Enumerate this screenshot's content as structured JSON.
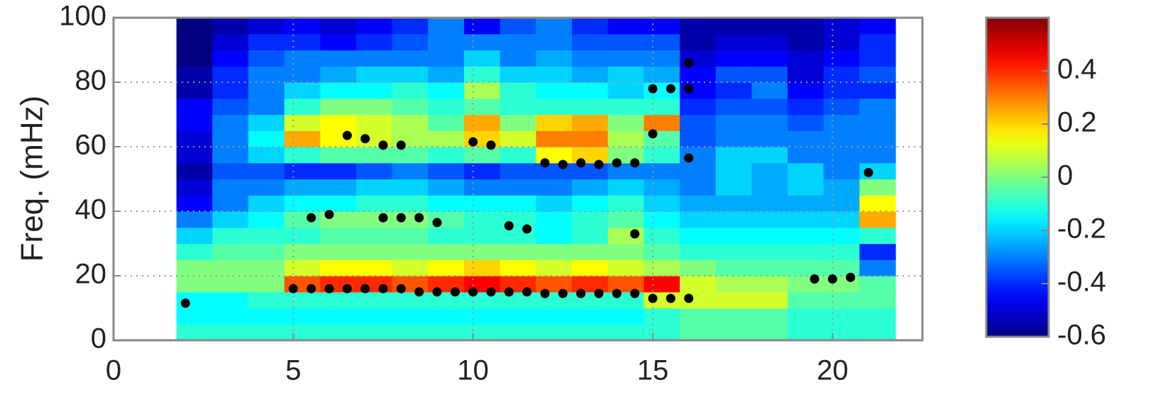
{
  "chart_data": {
    "type": "heatmap",
    "y_label": "Freq. (mHz)",
    "xlim": [
      0,
      22.5
    ],
    "xticks": [
      0,
      5,
      10,
      15,
      20
    ],
    "ylim": [
      0,
      100
    ],
    "yticks": [
      0,
      20,
      40,
      60,
      80,
      100
    ],
    "grid": true,
    "colormap": "jet",
    "clim": [
      -0.6,
      0.6
    ],
    "cticks": [
      -0.6,
      -0.4,
      -0.2,
      0,
      0.2,
      0.4
    ],
    "x": [
      2.25,
      3.25,
      4.25,
      5.25,
      6.25,
      7.25,
      8.25,
      9.25,
      10.25,
      11.25,
      12.25,
      13.25,
      14.25,
      15.25,
      16.25,
      17.25,
      18.25,
      19.25,
      20.25,
      21.25
    ],
    "y": [
      2.5,
      7.5,
      12.5,
      17.5,
      22.5,
      27.5,
      32.5,
      37.5,
      42.5,
      47.5,
      52.5,
      57.5,
      62.5,
      67.5,
      72.5,
      77.5,
      82.5,
      87.5,
      92.5,
      97.5
    ],
    "z": [
      [
        -0.1,
        -0.1,
        -0.1,
        -0.1,
        -0.1,
        -0.1,
        -0.1,
        -0.1,
        -0.1,
        -0.1,
        -0.1,
        -0.1,
        -0.1,
        -0.1,
        -0.05,
        -0.05,
        -0.05,
        -0.1,
        -0.1,
        -0.1
      ],
      [
        -0.15,
        -0.15,
        -0.15,
        -0.15,
        -0.15,
        -0.15,
        -0.15,
        -0.15,
        -0.15,
        -0.15,
        -0.15,
        -0.15,
        -0.15,
        -0.1,
        -0.05,
        -0.05,
        -0.05,
        -0.1,
        -0.1,
        -0.1
      ],
      [
        -0.15,
        -0.15,
        -0.1,
        -0.1,
        -0.1,
        -0.1,
        -0.1,
        -0.1,
        -0.1,
        -0.1,
        -0.1,
        -0.1,
        -0.1,
        0.1,
        0.1,
        0.1,
        0.1,
        -0.05,
        -0.05,
        -0.05
      ],
      [
        0,
        0,
        0,
        0.35,
        0.4,
        0.4,
        0.35,
        0.4,
        0.45,
        0.4,
        0.35,
        0.4,
        0.35,
        0.45,
        0.1,
        0.05,
        0.05,
        0,
        0,
        -0.05
      ],
      [
        0,
        0,
        0,
        0.1,
        0.15,
        0.15,
        0.1,
        0.15,
        0.2,
        0.15,
        0.1,
        0.15,
        0.1,
        0.05,
        0,
        -0.05,
        -0.05,
        -0.05,
        -0.05,
        -0.3
      ],
      [
        -0.1,
        -0.05,
        -0.05,
        0,
        0,
        0,
        0,
        0,
        0,
        0,
        0,
        0,
        0,
        -0.05,
        -0.1,
        -0.1,
        -0.1,
        -0.1,
        -0.1,
        -0.4
      ],
      [
        -0.2,
        -0.1,
        -0.1,
        -0.1,
        -0.05,
        -0.05,
        -0.05,
        -0.1,
        -0.1,
        -0.1,
        -0.15,
        -0.1,
        0.05,
        -0.1,
        -0.15,
        -0.15,
        -0.15,
        -0.15,
        -0.15,
        -0.1
      ],
      [
        -0.3,
        -0.2,
        -0.15,
        -0.05,
        0,
        0,
        0,
        -0.05,
        -0.1,
        -0.1,
        -0.15,
        -0.1,
        -0.05,
        -0.15,
        -0.2,
        -0.2,
        -0.2,
        -0.2,
        -0.2,
        0.25
      ],
      [
        -0.45,
        -0.3,
        -0.2,
        -0.15,
        -0.15,
        -0.1,
        -0.1,
        -0.15,
        -0.15,
        -0.15,
        -0.2,
        -0.15,
        -0.1,
        -0.2,
        -0.25,
        -0.25,
        -0.25,
        -0.25,
        -0.25,
        0.15
      ],
      [
        -0.5,
        -0.3,
        -0.3,
        -0.25,
        -0.25,
        -0.2,
        -0.2,
        -0.25,
        -0.3,
        -0.3,
        -0.3,
        -0.25,
        -0.2,
        -0.25,
        -0.3,
        -0.2,
        -0.25,
        -0.2,
        -0.25,
        0
      ],
      [
        -0.55,
        -0.35,
        -0.35,
        -0.4,
        -0.4,
        -0.35,
        -0.3,
        -0.35,
        -0.4,
        -0.35,
        -0.35,
        -0.35,
        -0.3,
        -0.3,
        -0.3,
        -0.2,
        -0.25,
        -0.2,
        -0.3,
        -0.2
      ],
      [
        -0.5,
        -0.3,
        -0.2,
        -0.1,
        -0.05,
        -0.05,
        -0.05,
        -0.1,
        -0.05,
        -0.1,
        0.15,
        0.2,
        0,
        -0.1,
        -0.3,
        -0.2,
        -0.2,
        -0.3,
        -0.3,
        -0.3
      ],
      [
        -0.5,
        -0.3,
        -0.15,
        0.25,
        0.15,
        0.1,
        0.05,
        0.05,
        0.2,
        0.1,
        0.3,
        0.3,
        0.05,
        -0.05,
        -0.35,
        -0.3,
        -0.3,
        -0.3,
        -0.3,
        -0.3
      ],
      [
        -0.45,
        -0.3,
        -0.2,
        0.1,
        0.15,
        0.1,
        0.05,
        -0.05,
        0.25,
        0,
        0.2,
        0.25,
        0,
        0.3,
        -0.35,
        -0.3,
        -0.3,
        -0.35,
        -0.3,
        -0.3
      ],
      [
        -0.45,
        -0.35,
        -0.3,
        -0.1,
        0,
        0,
        -0.05,
        -0.1,
        -0.05,
        -0.1,
        -0.1,
        -0.1,
        -0.1,
        -0.1,
        -0.4,
        -0.35,
        -0.35,
        -0.4,
        -0.35,
        -0.3
      ],
      [
        -0.55,
        -0.4,
        -0.3,
        -0.2,
        -0.15,
        -0.15,
        -0.1,
        -0.15,
        0.05,
        -0.1,
        -0.15,
        -0.15,
        -0.2,
        -0.15,
        -0.45,
        -0.4,
        -0.3,
        -0.45,
        -0.4,
        -0.4
      ],
      [
        -0.55,
        -0.4,
        -0.3,
        -0.3,
        -0.25,
        -0.2,
        -0.2,
        -0.25,
        -0.1,
        -0.2,
        -0.2,
        -0.25,
        -0.2,
        -0.25,
        -0.45,
        -0.35,
        -0.35,
        -0.5,
        -0.4,
        -0.35
      ],
      [
        -0.6,
        -0.45,
        -0.35,
        -0.3,
        -0.3,
        -0.3,
        -0.3,
        -0.3,
        -0.2,
        -0.3,
        -0.25,
        -0.3,
        -0.3,
        -0.3,
        -0.5,
        -0.45,
        -0.45,
        -0.5,
        -0.45,
        -0.4
      ],
      [
        -0.6,
        -0.5,
        -0.4,
        -0.4,
        -0.45,
        -0.4,
        -0.35,
        -0.3,
        -0.3,
        -0.3,
        -0.3,
        -0.35,
        -0.35,
        -0.35,
        -0.55,
        -0.5,
        -0.5,
        -0.55,
        -0.5,
        -0.4
      ],
      [
        -0.6,
        -0.55,
        -0.5,
        -0.45,
        -0.5,
        -0.45,
        -0.4,
        -0.3,
        -0.45,
        -0.35,
        -0.3,
        -0.4,
        -0.45,
        -0.45,
        -0.55,
        -0.55,
        -0.55,
        -0.55,
        -0.5,
        -0.45
      ]
    ],
    "points": {
      "color": "#000000",
      "x": [
        2,
        5,
        5.5,
        6,
        6.5,
        7,
        7.5,
        8,
        8.5,
        9,
        9.5,
        10,
        10.5,
        11,
        11.5,
        12,
        12.5,
        13,
        13.5,
        14,
        14.5,
        15,
        15.5,
        16,
        5.5,
        6,
        7.5,
        8,
        8.5,
        9,
        11,
        11.5,
        14.5,
        6.5,
        7,
        7.5,
        8,
        10,
        10.5,
        12,
        12.5,
        13,
        13.5,
        14,
        14.5,
        15,
        16,
        15,
        15.5,
        16,
        16,
        21,
        19.5,
        20,
        20.5
      ],
      "y": [
        11.5,
        16,
        16,
        16,
        16,
        16,
        16,
        16,
        15,
        15,
        15,
        15,
        15,
        15,
        15,
        14.5,
        14.5,
        14.5,
        14.5,
        14.5,
        14.5,
        13,
        13,
        13,
        38,
        39,
        38,
        38,
        38,
        36.5,
        35.5,
        34.5,
        33,
        63.5,
        62.5,
        60.5,
        60.5,
        61.5,
        60.5,
        55,
        54.5,
        55,
        54.5,
        55,
        55,
        64,
        56.5,
        78,
        78,
        78,
        86,
        52,
        19,
        19,
        19.5
      ]
    }
  }
}
